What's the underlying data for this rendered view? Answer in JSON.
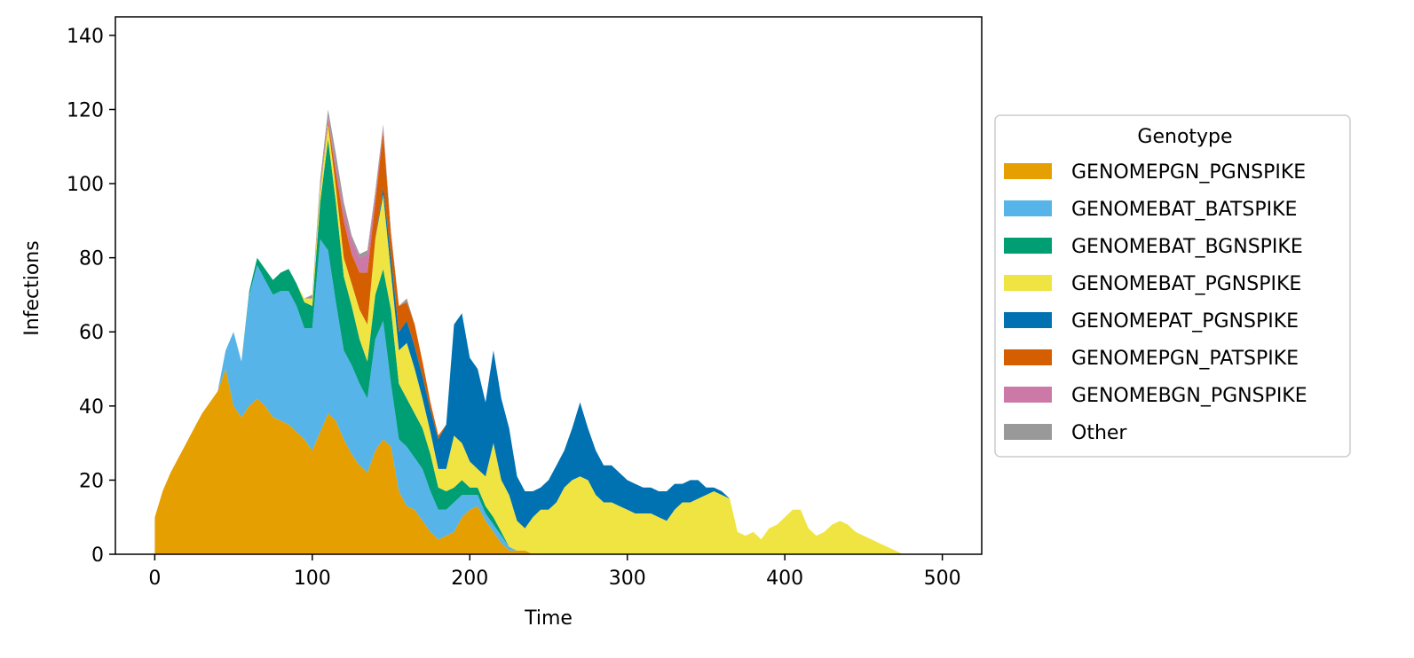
{
  "chart_data": {
    "type": "area",
    "stacked": true,
    "xlabel": "Time",
    "ylabel": "Infections",
    "xlim": [
      -25,
      525
    ],
    "ylim": [
      0,
      145
    ],
    "xticks": [
      0,
      100,
      200,
      300,
      400,
      500
    ],
    "yticks": [
      0,
      20,
      40,
      60,
      80,
      100,
      120,
      140
    ],
    "grid": false,
    "legend": {
      "title": "Genotype",
      "placement": "outside-right"
    },
    "x": [
      0,
      5,
      10,
      15,
      20,
      25,
      30,
      35,
      40,
      45,
      50,
      55,
      60,
      65,
      70,
      75,
      80,
      85,
      90,
      95,
      100,
      105,
      110,
      115,
      120,
      125,
      130,
      135,
      140,
      145,
      150,
      155,
      160,
      165,
      170,
      175,
      180,
      185,
      190,
      195,
      200,
      205,
      210,
      215,
      220,
      225,
      230,
      235,
      240,
      245,
      250,
      255,
      260,
      265,
      270,
      275,
      280,
      285,
      290,
      295,
      300,
      305,
      310,
      315,
      320,
      325,
      330,
      335,
      340,
      345,
      350,
      355,
      360,
      365,
      370,
      375,
      380,
      385,
      390,
      395,
      400,
      405,
      410,
      415,
      420,
      425,
      430,
      435,
      440,
      445,
      450,
      455,
      460,
      465,
      470,
      475,
      480,
      485,
      490,
      495,
      500
    ],
    "series": [
      {
        "name": "GENOMEPGN_PGNSPIKE",
        "color": "#E69F00",
        "values": [
          10,
          17,
          22,
          26,
          30,
          34,
          38,
          41,
          44,
          50,
          40,
          37,
          40,
          42,
          40,
          37,
          36,
          35,
          33,
          31,
          28,
          33,
          38,
          36,
          31,
          27,
          24,
          22,
          28,
          31,
          29,
          17,
          13,
          12,
          9,
          6,
          4,
          5,
          6,
          10,
          12,
          13,
          9,
          6,
          3,
          1,
          1,
          1,
          0,
          0,
          0,
          0,
          0,
          0,
          0,
          0,
          0,
          0,
          0,
          0,
          0,
          0,
          0,
          0,
          0,
          0,
          0,
          0,
          0,
          0,
          0,
          0,
          0,
          0,
          0,
          0,
          0,
          0,
          0,
          0,
          0,
          0,
          0,
          0,
          0,
          0,
          0,
          0,
          0,
          0,
          0,
          0,
          0,
          0,
          0,
          0,
          0,
          0,
          0,
          0,
          0
        ]
      },
      {
        "name": "GENOMEBAT_BATSPIKE",
        "color": "#56B4E9",
        "values": [
          0,
          0,
          0,
          0,
          0,
          0,
          0,
          0,
          0,
          5,
          20,
          15,
          30,
          36,
          34,
          33,
          35,
          36,
          34,
          30,
          33,
          52,
          44,
          32,
          24,
          24,
          22,
          20,
          30,
          32,
          17,
          14,
          16,
          14,
          14,
          11,
          8,
          7,
          8,
          6,
          4,
          3,
          2,
          2,
          2,
          1,
          0,
          0,
          0,
          0,
          0,
          0,
          0,
          0,
          0,
          0,
          0,
          0,
          0,
          0,
          0,
          0,
          0,
          0,
          0,
          0,
          0,
          0,
          0,
          0,
          0,
          0,
          0,
          0,
          0,
          0,
          0,
          0,
          0,
          0,
          0,
          0,
          0,
          0,
          0,
          0,
          0,
          0,
          0,
          0,
          0,
          0,
          0,
          0,
          0,
          0,
          0,
          0,
          0,
          0,
          0
        ]
      },
      {
        "name": "GENOMEBAT_BGNSPIKE",
        "color": "#009E73",
        "values": [
          0,
          0,
          0,
          0,
          0,
          0,
          0,
          0,
          0,
          0,
          0,
          0,
          1,
          2,
          3,
          4,
          5,
          6,
          6,
          7,
          6,
          10,
          30,
          27,
          20,
          16,
          12,
          10,
          12,
          14,
          20,
          15,
          13,
          12,
          11,
          10,
          6,
          5,
          4,
          4,
          2,
          2,
          2,
          2,
          1,
          0,
          0,
          0,
          0,
          0,
          0,
          0,
          0,
          0,
          0,
          0,
          0,
          0,
          0,
          0,
          0,
          0,
          0,
          0,
          0,
          0,
          0,
          0,
          0,
          0,
          0,
          0,
          0,
          0,
          0,
          0,
          0,
          0,
          0,
          0,
          0,
          0,
          0,
          0,
          0,
          0,
          0,
          0,
          0,
          0,
          0,
          0,
          0,
          0,
          0,
          0,
          0,
          0,
          0,
          0,
          0
        ]
      },
      {
        "name": "GENOMEBAT_PGNSPIKE",
        "color": "#F0E442",
        "values": [
          0,
          0,
          0,
          0,
          0,
          0,
          0,
          0,
          0,
          0,
          0,
          0,
          0,
          0,
          0,
          0,
          0,
          0,
          0,
          1,
          2,
          3,
          4,
          4,
          5,
          6,
          8,
          10,
          15,
          20,
          10,
          9,
          15,
          12,
          8,
          6,
          5,
          6,
          14,
          10,
          7,
          5,
          8,
          20,
          14,
          14,
          8,
          6,
          10,
          12,
          12,
          14,
          18,
          20,
          21,
          20,
          16,
          14,
          14,
          13,
          12,
          11,
          11,
          11,
          10,
          9,
          12,
          14,
          14,
          15,
          16,
          17,
          16,
          15,
          6,
          5,
          6,
          4,
          7,
          8,
          10,
          12,
          12,
          7,
          5,
          6,
          8,
          9,
          8,
          6,
          5,
          4,
          3,
          2,
          1,
          0,
          0,
          0,
          0,
          0,
          0
        ]
      },
      {
        "name": "GENOMEPAT_PGNSPIKE",
        "color": "#0072B2",
        "values": [
          0,
          0,
          0,
          0,
          0,
          0,
          0,
          0,
          0,
          0,
          0,
          0,
          0,
          0,
          0,
          0,
          0,
          0,
          0,
          0,
          0,
          0,
          0,
          0,
          0,
          0,
          0,
          0,
          0,
          2,
          4,
          5,
          6,
          6,
          6,
          6,
          8,
          12,
          30,
          35,
          28,
          27,
          20,
          25,
          22,
          18,
          12,
          10,
          7,
          6,
          8,
          10,
          10,
          14,
          20,
          14,
          12,
          10,
          10,
          9,
          8,
          8,
          7,
          7,
          7,
          8,
          7,
          5,
          6,
          5,
          2,
          1,
          1,
          0,
          0,
          0,
          0,
          0,
          0,
          0,
          0,
          0,
          0,
          0,
          0,
          0,
          0,
          0,
          0,
          0,
          0,
          0,
          0,
          0,
          0,
          0,
          0,
          0,
          0,
          0,
          0
        ]
      },
      {
        "name": "GENOMEPGN_PATSPIKE",
        "color": "#D55E00",
        "values": [
          0,
          0,
          0,
          0,
          0,
          0,
          0,
          0,
          0,
          0,
          0,
          0,
          0,
          0,
          0,
          0,
          0,
          0,
          0,
          0,
          0,
          0,
          1,
          4,
          10,
          8,
          10,
          14,
          10,
          15,
          6,
          7,
          5,
          6,
          4,
          2,
          1,
          0,
          0,
          0,
          0,
          0,
          0,
          0,
          0,
          0,
          0,
          0,
          0,
          0,
          0,
          0,
          0,
          0,
          0,
          0,
          0,
          0,
          0,
          0,
          0,
          0,
          0,
          0,
          0,
          0,
          0,
          0,
          0,
          0,
          0,
          0,
          0,
          0,
          0,
          0,
          0,
          0,
          0,
          0,
          0,
          0,
          0,
          0,
          0,
          0,
          0,
          0,
          0,
          0,
          0,
          0,
          0,
          0,
          0,
          0,
          0,
          0,
          0,
          0,
          0
        ]
      },
      {
        "name": "GENOMEBGN_PGNSPIKE",
        "color": "#CC79A7",
        "values": [
          0,
          0,
          0,
          0,
          0,
          0,
          0,
          0,
          0,
          0,
          0,
          0,
          0,
          0,
          0,
          0,
          0,
          0,
          0,
          0,
          0,
          1,
          1,
          2,
          3,
          4,
          4,
          5,
          2,
          1,
          0,
          0,
          0,
          0,
          0,
          0,
          0,
          0,
          0,
          0,
          0,
          0,
          0,
          0,
          0,
          0,
          0,
          0,
          0,
          0,
          0,
          0,
          0,
          0,
          0,
          0,
          0,
          0,
          0,
          0,
          0,
          0,
          0,
          0,
          0,
          0,
          0,
          0,
          0,
          0,
          0,
          0,
          0,
          0,
          0,
          0,
          0,
          0,
          0,
          0,
          0,
          0,
          0,
          0,
          0,
          0,
          0,
          0,
          0,
          0,
          0,
          0,
          0,
          0,
          0,
          0,
          0,
          0,
          0,
          0,
          0
        ]
      },
      {
        "name": "Other",
        "color": "#999999",
        "values": [
          0,
          0,
          0,
          0,
          0,
          0,
          0,
          0,
          0,
          0,
          0,
          0,
          0,
          0,
          0,
          0,
          0,
          0,
          0,
          0,
          1,
          2,
          2,
          3,
          2,
          1,
          1,
          1,
          1,
          1,
          1,
          0,
          1,
          0,
          0,
          0,
          0,
          0,
          0,
          0,
          0,
          0,
          0,
          0,
          0,
          0,
          0,
          0,
          0,
          0,
          0,
          0,
          0,
          0,
          0,
          0,
          0,
          0,
          0,
          0,
          0,
          0,
          0,
          0,
          0,
          0,
          0,
          0,
          0,
          0,
          0,
          0,
          0,
          0,
          0,
          0,
          0,
          0,
          0,
          0,
          0,
          0,
          0,
          0,
          0,
          0,
          0,
          0,
          0,
          0,
          0,
          0,
          0,
          0,
          0,
          0,
          0,
          0,
          0,
          0,
          0
        ]
      }
    ]
  }
}
